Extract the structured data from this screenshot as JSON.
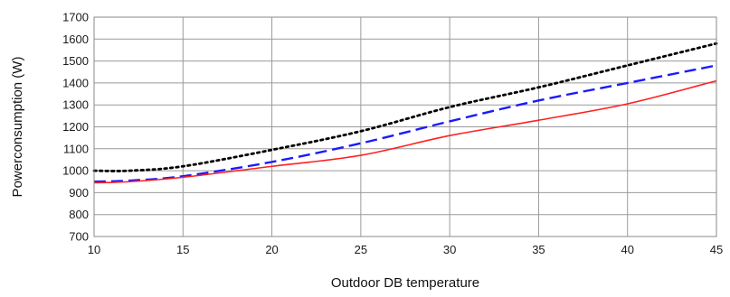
{
  "chart_data": {
    "type": "line",
    "title": "",
    "xlabel": "Outdoor DB temperature",
    "ylabel": "Powerconsumption (W)",
    "xlim": [
      10,
      45
    ],
    "ylim": [
      700,
      1700
    ],
    "x_ticks": [
      10,
      15,
      20,
      25,
      30,
      35,
      40,
      45
    ],
    "y_ticks": [
      700,
      800,
      900,
      1000,
      1100,
      1200,
      1300,
      1400,
      1500,
      1600,
      1700
    ],
    "grid": true,
    "legend": "none",
    "series": [
      {
        "style": "dotted",
        "color": "#000000",
        "x": [
          10,
          12,
          15,
          20,
          25,
          30,
          35,
          40,
          45
        ],
        "y": [
          1000,
          1000,
          1020,
          1095,
          1180,
          1290,
          1380,
          1480,
          1580
        ]
      },
      {
        "style": "dashed",
        "color": "#1a1aff",
        "x": [
          10,
          12,
          15,
          20,
          25,
          30,
          35,
          40,
          45
        ],
        "y": [
          950,
          955,
          975,
          1040,
          1125,
          1225,
          1320,
          1400,
          1480
        ]
      },
      {
        "style": "solid",
        "color": "#ff2020",
        "x": [
          10,
          12,
          15,
          20,
          25,
          30,
          35,
          40,
          45
        ],
        "y": [
          945,
          950,
          970,
          1020,
          1070,
          1160,
          1230,
          1305,
          1410
        ]
      }
    ]
  }
}
